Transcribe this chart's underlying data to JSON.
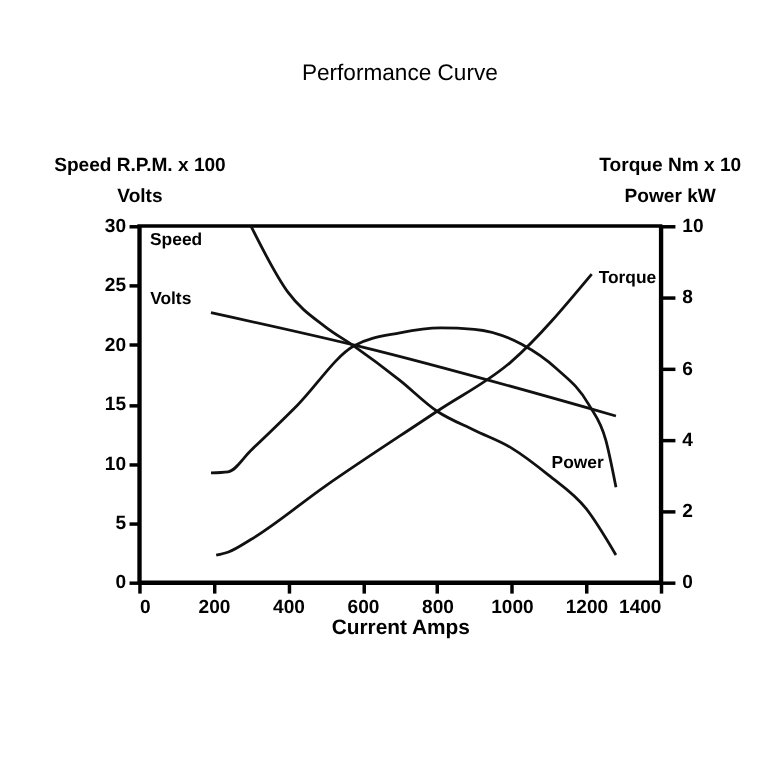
{
  "chart_data": {
    "type": "line",
    "title": "Performance Curve",
    "xlabel": "Current Amps",
    "ylabel": "Speed R.P.M. x 100\nVolts",
    "y2label": "Torque Nm x 10\nPower kW",
    "xlim": [
      0,
      1400
    ],
    "xticks": [
      0,
      200,
      400,
      600,
      800,
      1000,
      1200,
      1400
    ],
    "ylim": [
      0,
      30
    ],
    "yticks": [
      0,
      5,
      10,
      15,
      20,
      25,
      30
    ],
    "y2lim": [
      0,
      10
    ],
    "y2ticks": [
      0,
      2,
      4,
      6,
      8,
      10
    ],
    "grid": false,
    "series": [
      {
        "name": "Speed",
        "color": "#111111",
        "x": [
          300,
          400,
          500,
          576,
          700,
          800,
          900,
          1000,
          1100,
          1200,
          1280
        ],
        "values": [
          30,
          24.4,
          21.5,
          19.9,
          17,
          14.4,
          12.8,
          11.3,
          9,
          6.2,
          2.3
        ]
      },
      {
        "name": "Volts",
        "color": "#111111",
        "x": [
          193,
          600,
          1280
        ],
        "values": [
          22.7,
          19.8,
          14
        ]
      },
      {
        "name": "Torque",
        "axis": "y2",
        "color": "#111111",
        "x": [
          207,
          240,
          300,
          500,
          800,
          1000,
          1215
        ],
        "values": [
          0.76,
          0.85,
          1.2,
          2.7,
          4.8,
          6.2,
          8.65
        ]
      },
      {
        "name": "Power",
        "axis": "y2",
        "color": "#111111",
        "x": [
          193,
          239,
          300,
          425,
          576,
          700,
          809,
          900,
          1027,
          1120,
          1208,
          1253,
          1280
        ],
        "values": [
          3.07,
          3.1,
          3.7,
          4.97,
          6.63,
          7.0,
          7.14,
          7.1,
          6.68,
          6.0,
          4.97,
          3.98,
          2.67
        ]
      }
    ]
  }
}
